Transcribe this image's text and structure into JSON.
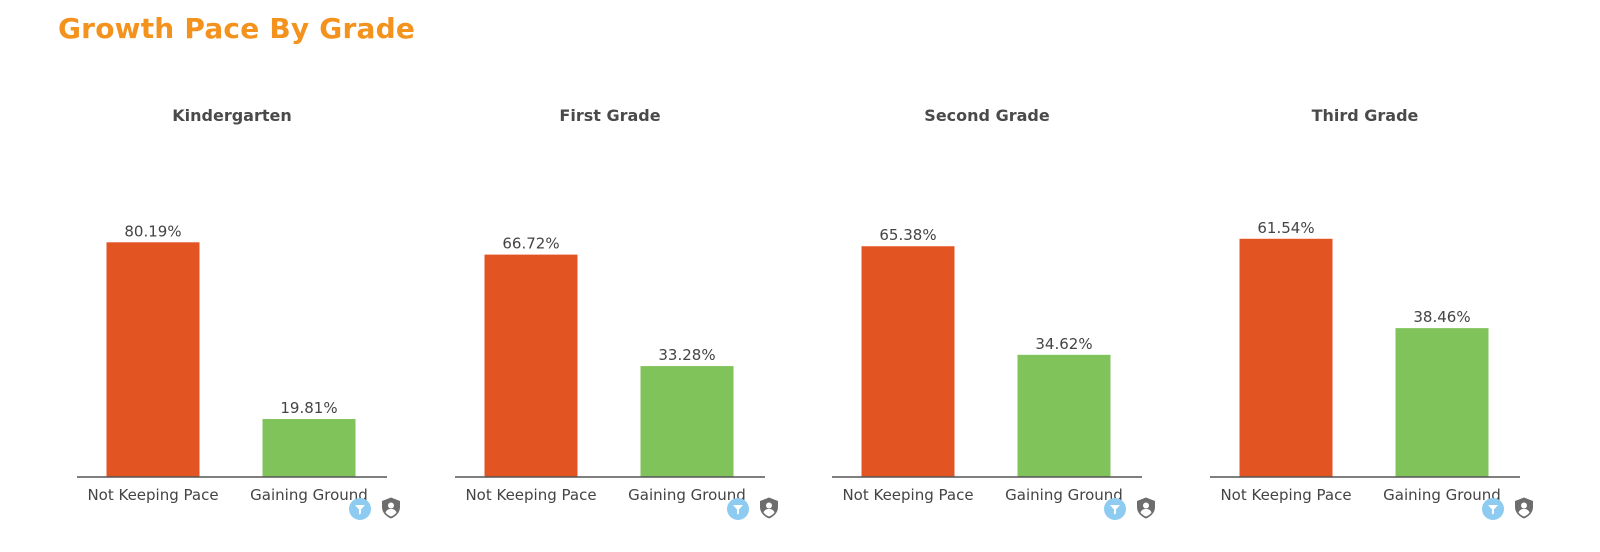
{
  "page": {
    "title": "Growth Pace By Grade"
  },
  "colors": {
    "title": "#f4921e",
    "not_keeping_pace": "#e35423",
    "gaining_ground": "#80c35b",
    "axis": "#555555",
    "text": "#444444",
    "filter_icon": "#8ecbf0",
    "user_icon": "#6d6d6d"
  },
  "icons": {
    "filter": "filter-icon",
    "user": "user-shield-icon"
  },
  "chart_data": [
    {
      "type": "bar",
      "title": "Kindergarten",
      "categories": [
        "Not Keeping Pace",
        "Gaining Ground"
      ],
      "values": [
        80.19,
        19.81
      ],
      "value_labels": [
        "80.19%",
        "19.81%"
      ],
      "ylim": [
        0,
        82
      ],
      "grid": false
    },
    {
      "type": "bar",
      "title": "First Grade",
      "categories": [
        "Not Keeping Pace",
        "Gaining Ground"
      ],
      "values": [
        66.72,
        33.28
      ],
      "value_labels": [
        "66.72%",
        "33.28%"
      ],
      "ylim": [
        0,
        72
      ],
      "grid": false
    },
    {
      "type": "bar",
      "title": "Second Grade",
      "categories": [
        "Not Keeping Pace",
        "Gaining Ground"
      ],
      "values": [
        65.38,
        34.62
      ],
      "value_labels": [
        "65.38%",
        "34.62%"
      ],
      "ylim": [
        0,
        68
      ],
      "grid": false
    },
    {
      "type": "bar",
      "title": "Third Grade",
      "categories": [
        "Not Keeping Pace",
        "Gaining Ground"
      ],
      "values": [
        61.54,
        38.46
      ],
      "value_labels": [
        "61.54%",
        "38.46%"
      ],
      "ylim": [
        0,
        62
      ],
      "grid": false
    }
  ]
}
